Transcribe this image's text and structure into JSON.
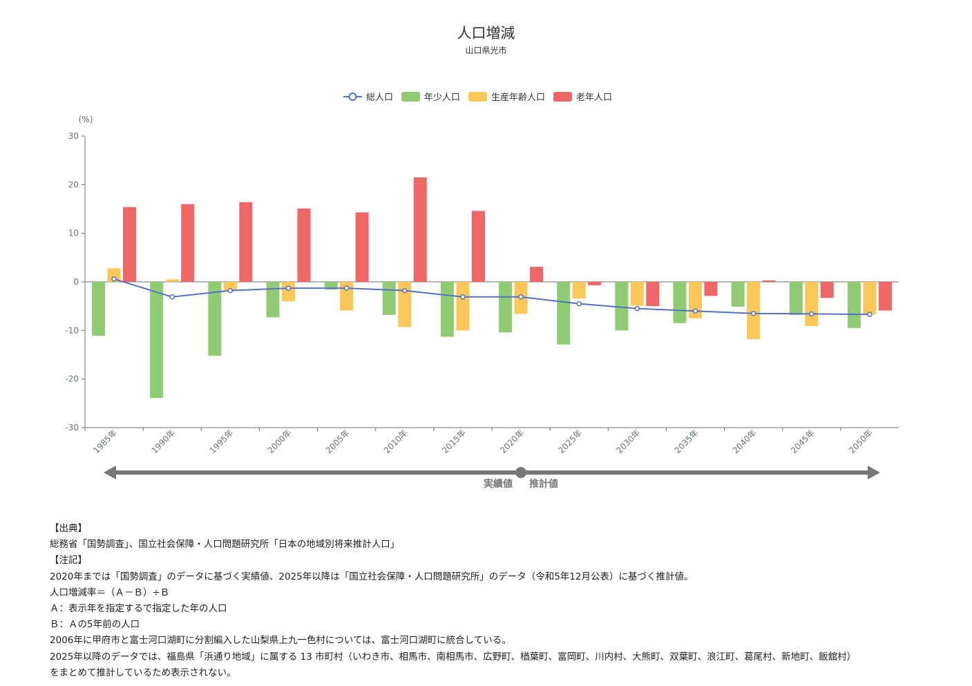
{
  "chart_data": {
    "type": "bar",
    "title": "人口増減",
    "subtitle": "山口県光市",
    "ylabel": "(%)",
    "ylim": [
      -30,
      30
    ],
    "yticks": [
      -30,
      -20,
      -10,
      0,
      10,
      20,
      30
    ],
    "grid": false,
    "legend_position": "top-center",
    "categories": [
      "1985年",
      "1990年",
      "1995年",
      "2000年",
      "2005年",
      "2010年",
      "2015年",
      "2020年",
      "2025年",
      "2030年",
      "2035年",
      "2040年",
      "2045年",
      "2050年"
    ],
    "series": [
      {
        "name": "総人口",
        "kind": "line",
        "color": "#5470c6",
        "values": [
          0.6,
          -3.1,
          -1.8,
          -1.3,
          -1.3,
          -1.8,
          -3.1,
          -3.1,
          -4.5,
          -5.5,
          -6.0,
          -6.5,
          -6.6,
          -6.7
        ]
      },
      {
        "name": "年少人口",
        "kind": "bar",
        "color": "#91cc75",
        "values": [
          -11.1,
          -23.9,
          -15.2,
          -7.3,
          -1.6,
          -6.8,
          -11.3,
          -10.4,
          -12.9,
          -10.0,
          -8.5,
          -5.1,
          -6.8,
          -9.5
        ]
      },
      {
        "name": "生産年齢人口",
        "kind": "bar",
        "color": "#fac858",
        "values": [
          2.8,
          0.5,
          -1.8,
          -4.0,
          -5.9,
          -9.3,
          -10.0,
          -6.6,
          -3.4,
          -4.9,
          -7.5,
          -11.8,
          -9.1,
          -6.7
        ]
      },
      {
        "name": "老年人口",
        "kind": "bar",
        "color": "#ee6666",
        "values": [
          15.4,
          16.0,
          16.4,
          15.1,
          14.3,
          21.5,
          14.6,
          3.1,
          -0.7,
          -5.0,
          -2.9,
          0.3,
          -3.3,
          -5.9
        ]
      }
    ],
    "period_labels": {
      "actual": "実績値",
      "projected": "推計値"
    }
  },
  "notes": {
    "source_heading": "【出典】",
    "source_text": "総務省「国勢調査」、国立社会保障・人口問題研究所「日本の地域別将来推計人口」",
    "notes_heading": "【注記】",
    "lines": [
      "2020年までは「国勢調査」のデータに基づく実績値、2025年以降は「国立社会保障・人口問題研究所」のデータ（令和5年12月公表）に基づく推計値。",
      "人口増減率＝（Ａ－Ｂ）÷Ｂ",
      "Ａ：表示年を指定するで指定した年の人口",
      "Ｂ：Ａの5年前の人口",
      "2006年に甲府市と富士河口湖町に分割編入した山梨県上九一色村については、富士河口湖町に統合している。",
      "2025年以降のデータでは、福島県「浜通り地域」に属する 13 市町村（いわき市、相馬市、南相馬市、広野町、楢葉町、富岡町、川内村、大熊町、双葉町、浪江町、葛尾村、新地町、飯舘村）",
      "をまとめて推計しているため表示されない。"
    ]
  }
}
